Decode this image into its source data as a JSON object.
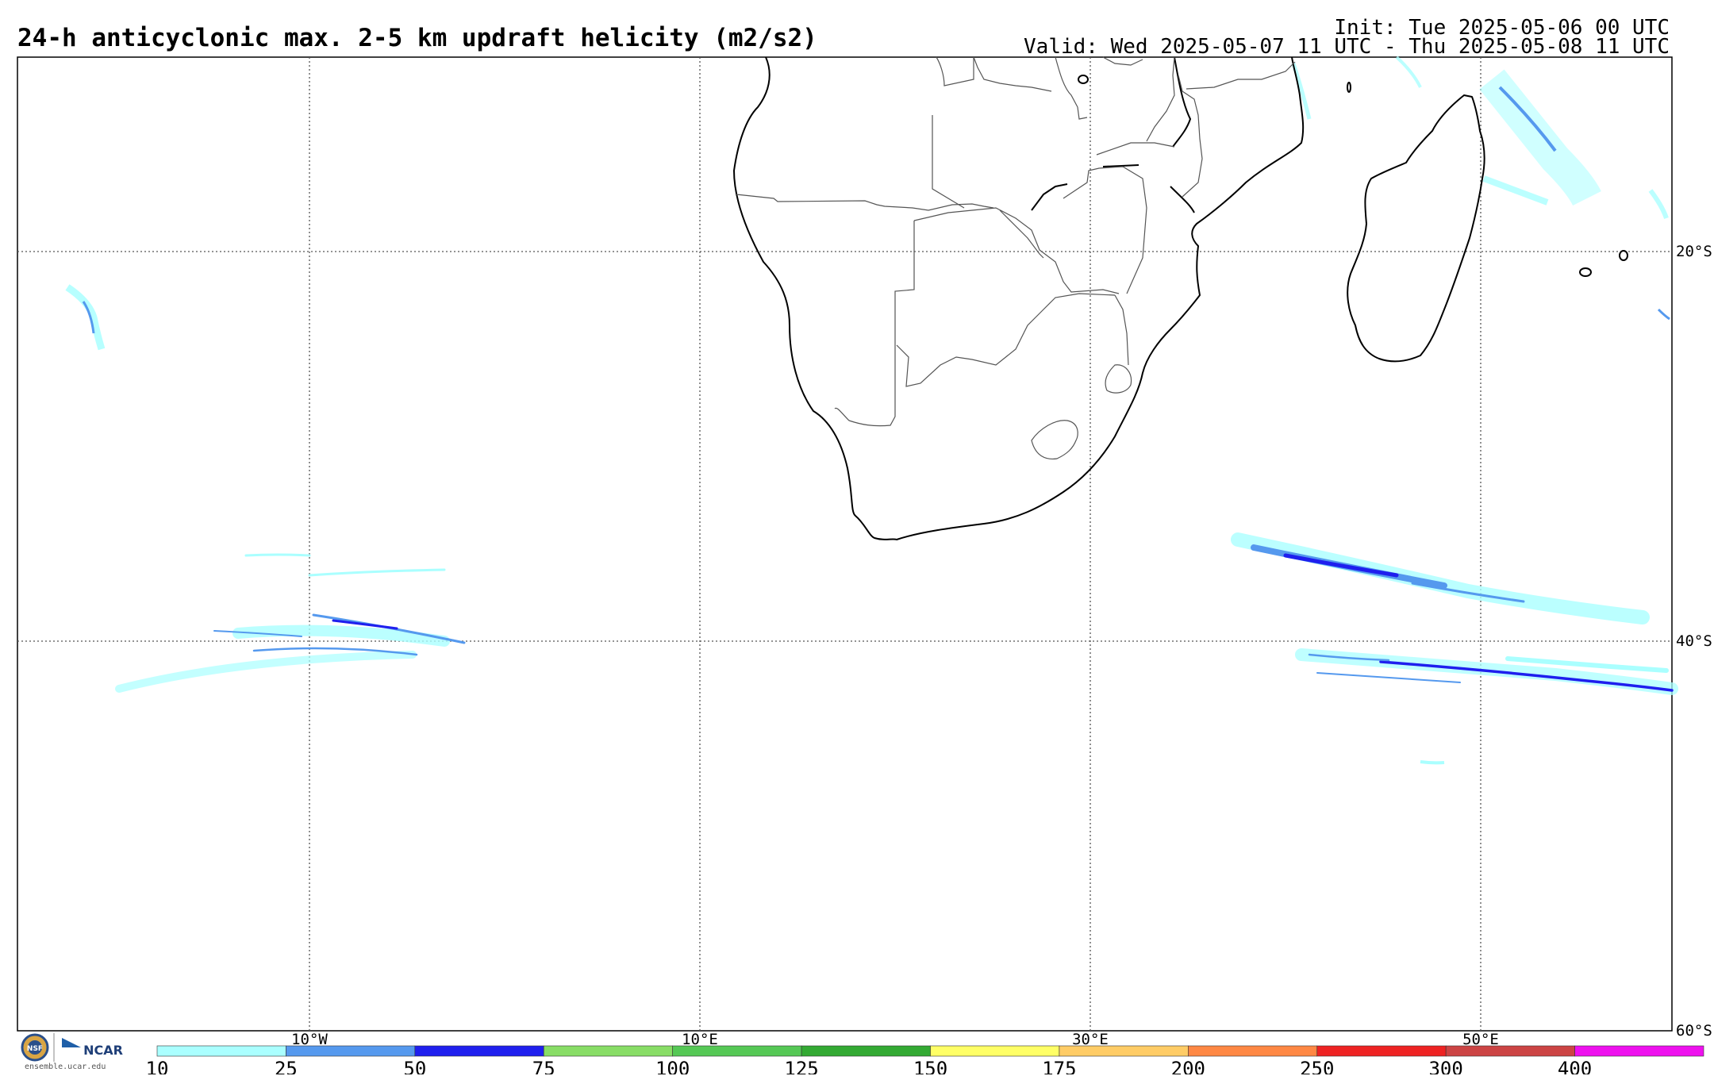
{
  "header": {
    "title": "24-h anticyclonic max. 2-5 km updraft helicity (m2/s2)",
    "init": "Init: Tue 2025-05-06 00 UTC",
    "valid": "Valid: Wed 2025-05-07 11 UTC - Thu 2025-05-08 11 UTC"
  },
  "map": {
    "lon_labels": [
      "10°W",
      "10°E",
      "30°E",
      "50°E"
    ],
    "lat_labels": [
      "20°S",
      "40°S",
      "60°S"
    ]
  },
  "colorbar": {
    "ticks": [
      "10",
      "25",
      "50",
      "75",
      "100",
      "125",
      "150",
      "175",
      "200",
      "250",
      "300",
      "400"
    ],
    "colors": [
      "#aaffff",
      "#5599ee",
      "#1f1fee",
      "#88dd66",
      "#55c855",
      "#33aa33",
      "#ffff66",
      "#ffcc66",
      "#ff8844",
      "#ee2222",
      "#cc4444",
      "#ee11ee"
    ]
  },
  "logo": {
    "org1": "NSF",
    "org2": "NCAR",
    "url": "ensemble.ucar.edu"
  }
}
